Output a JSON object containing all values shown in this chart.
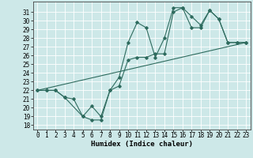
{
  "xlabel": "Humidex (Indice chaleur)",
  "xlim": [
    -0.5,
    23.5
  ],
  "ylim": [
    17.5,
    32.2
  ],
  "yticks": [
    18,
    19,
    20,
    21,
    22,
    23,
    24,
    25,
    26,
    27,
    28,
    29,
    30,
    31
  ],
  "xticks": [
    0,
    1,
    2,
    3,
    4,
    5,
    6,
    7,
    8,
    9,
    10,
    11,
    12,
    13,
    14,
    15,
    16,
    17,
    18,
    19,
    20,
    21,
    22,
    23
  ],
  "bg_color": "#cde8e8",
  "grid_color": "#a8d4d4",
  "line_color": "#2e6b5e",
  "line1_x": [
    0,
    1,
    2,
    3,
    4,
    5,
    6,
    7,
    8,
    9,
    10,
    11,
    12,
    13,
    14,
    15,
    16,
    17,
    18,
    19,
    20,
    21,
    22,
    23
  ],
  "line1_y": [
    22.0,
    22.0,
    22.0,
    21.2,
    21.0,
    19.0,
    18.6,
    18.6,
    22.0,
    23.5,
    27.5,
    29.8,
    29.2,
    25.8,
    28.0,
    31.5,
    31.5,
    30.5,
    29.5,
    31.2,
    30.2,
    27.5,
    27.5,
    27.5
  ],
  "line2_x": [
    0,
    1,
    2,
    3,
    5,
    6,
    7,
    8,
    9,
    10,
    11,
    12,
    13,
    14,
    15,
    16,
    17,
    18,
    19,
    20,
    21,
    22,
    23
  ],
  "line2_y": [
    22.0,
    22.0,
    22.0,
    21.2,
    19.0,
    20.2,
    19.0,
    22.0,
    22.5,
    25.5,
    25.8,
    25.8,
    26.2,
    26.2,
    31.0,
    31.5,
    29.2,
    29.2,
    31.2,
    30.2,
    27.5,
    27.5,
    27.5
  ],
  "line3_x": [
    0,
    23
  ],
  "line3_y": [
    22.0,
    27.5
  ],
  "font_size_label": 6.5,
  "font_size_tick": 5.5,
  "marker": "D",
  "marker_size": 1.8,
  "linewidth": 0.8
}
